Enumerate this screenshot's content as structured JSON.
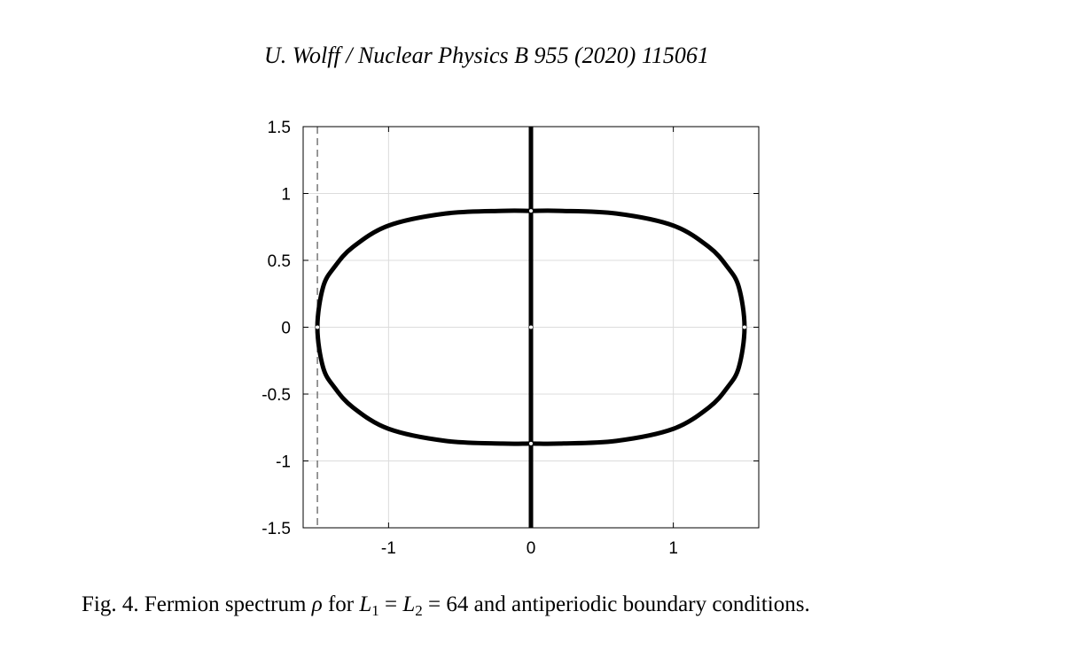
{
  "header": {
    "running_head": "U. Wolff / Nuclear Physics B 955 (2020) 115061"
  },
  "figure": {
    "caption": {
      "prefix": "Fig. 4. Fermion spectrum ",
      "rho": "ρ",
      "for_text": " for ",
      "L1": "L",
      "L1_sub": "1",
      "eq1": " = ",
      "L2": "L",
      "L2_sub": "2",
      "eq2": " = 64",
      "suffix": " and antiperiodic boundary conditions."
    }
  },
  "chart_data": {
    "type": "scatter",
    "title": "",
    "xlabel": "",
    "ylabel": "",
    "xlim": [
      -1.6,
      1.6
    ],
    "ylim": [
      -1.5,
      1.5
    ],
    "x_ticks": [
      -1,
      0,
      1
    ],
    "x_tick_labels": [
      "-1",
      "0",
      "1"
    ],
    "y_ticks": [
      1.5,
      1,
      0.5,
      0,
      -0.5,
      -1,
      -1.5
    ],
    "y_tick_labels": [
      "1.5",
      "1",
      "0.5",
      "0",
      "-0.5",
      "-1",
      "-1.5"
    ],
    "grid": true,
    "series": [
      {
        "description_kind": "closed-curve",
        "points": [
          [
            -1.5,
            0.0
          ],
          [
            -1.46,
            0.3
          ],
          [
            -1.38,
            0.45
          ],
          [
            -1.25,
            0.6
          ],
          [
            -1.0,
            0.76
          ],
          [
            -0.6,
            0.85
          ],
          [
            -0.2,
            0.87
          ],
          [
            0.0,
            0.87
          ],
          [
            0.2,
            0.87
          ],
          [
            0.6,
            0.85
          ],
          [
            1.0,
            0.76
          ],
          [
            1.25,
            0.6
          ],
          [
            1.38,
            0.45
          ],
          [
            1.46,
            0.3
          ],
          [
            1.5,
            0.0
          ],
          [
            1.46,
            -0.3
          ],
          [
            1.38,
            -0.45
          ],
          [
            1.25,
            -0.6
          ],
          [
            1.0,
            -0.76
          ],
          [
            0.6,
            -0.85
          ],
          [
            0.2,
            -0.87
          ],
          [
            0.0,
            -0.87
          ],
          [
            -0.2,
            -0.87
          ],
          [
            -0.6,
            -0.85
          ],
          [
            -1.0,
            -0.76
          ],
          [
            -1.25,
            -0.6
          ],
          [
            -1.38,
            -0.45
          ],
          [
            -1.46,
            -0.3
          ],
          [
            -1.5,
            0.0
          ]
        ]
      },
      {
        "description_kind": "vertical-line",
        "points": [
          [
            0.0,
            -1.5
          ],
          [
            0.0,
            1.5
          ]
        ]
      }
    ],
    "reference_lines": [
      {
        "orientation": "vertical",
        "x": -1.5,
        "style": "dashed"
      }
    ],
    "colors": {
      "data": "#000000",
      "grid": "#dcdcdc",
      "axes": "#000000",
      "reference": "#555555"
    }
  }
}
